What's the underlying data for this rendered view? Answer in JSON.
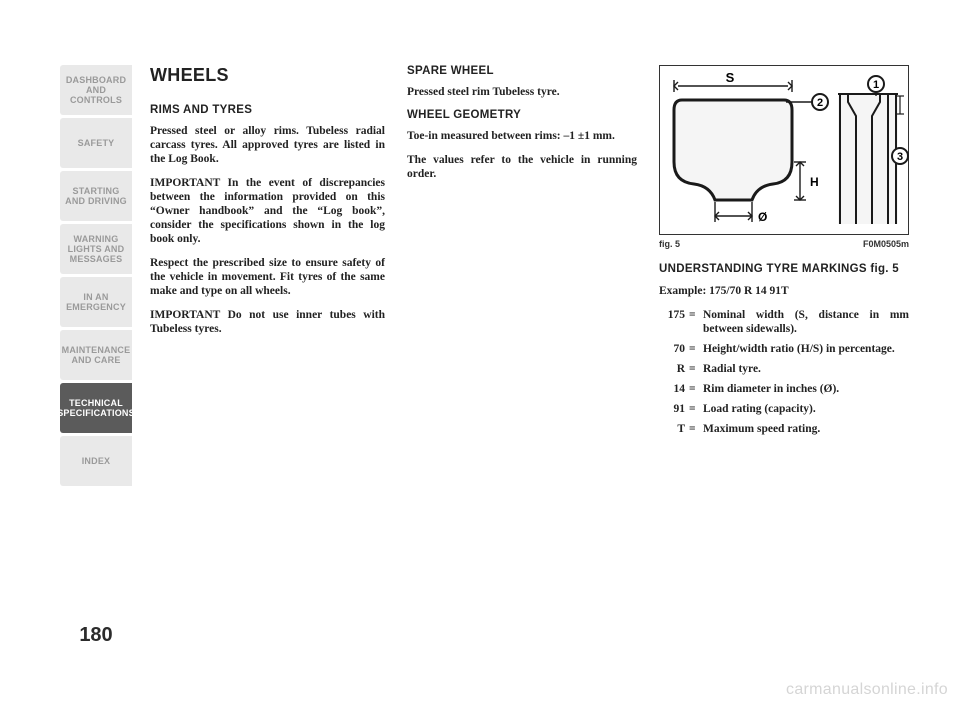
{
  "page_number": "180",
  "watermark": "carmanualsonline.info",
  "sidebar": {
    "tabs": [
      {
        "label": "DASHBOARD\nAND CONTROLS",
        "style": "light"
      },
      {
        "label": "SAFETY",
        "style": "light"
      },
      {
        "label": "STARTING\nAND DRIVING",
        "style": "light"
      },
      {
        "label": "WARNING\nLIGHTS AND\nMESSAGES",
        "style": "light"
      },
      {
        "label": "IN AN\nEMERGENCY",
        "style": "light"
      },
      {
        "label": "MAINTENANCE\nAND CARE",
        "style": "light"
      },
      {
        "label": "TECHNICAL\nSPECIFICATIONS",
        "style": "dark"
      },
      {
        "label": "INDEX",
        "style": "light"
      }
    ]
  },
  "col1": {
    "heading": "WHEELS",
    "sub1": "RIMS AND TYRES",
    "p1": "Pressed steel or alloy rims. Tubeless radial carcass tyres. All approved tyres are listed in the Log Book.",
    "p2": "IMPORTANT In the event of discrepancies between the information provided on this “Owner handbook” and the “Log book”, consider the specifications shown in the log book only.",
    "p3": "Respect the prescribed size to ensure safety of the vehicle in movement. Fit tyres of the same make and type on all wheels.",
    "p4": "IMPORTANT Do not use inner tubes with Tubeless tyres."
  },
  "col2": {
    "sub1": "SPARE WHEEL",
    "p1": "Pressed steel rim Tubeless tyre.",
    "sub2": "WHEEL GEOMETRY",
    "p2": "Toe-in measured between rims: –1 ±1 mm.",
    "p3": "The values refer to the vehicle in running order."
  },
  "col3": {
    "figure": {
      "caption_left": "fig. 5",
      "caption_right": "F0M0505m",
      "labels": {
        "S": "S",
        "H": "H",
        "phi": "Ø",
        "n1": "1",
        "n2": "2",
        "n3": "3"
      },
      "colors": {
        "stroke": "#1a1a1a",
        "fill_light": "#f5f5f5",
        "fill_dark": "#d9d9d9",
        "bg": "#ffffff"
      }
    },
    "sub1": "UNDERSTANDING TYRE MARKINGS fig. 5",
    "example_label": "Example: 175/70 R 14 91T",
    "defs": [
      {
        "term": "175",
        "def": "Nominal width (S, distance in mm between sidewalls)."
      },
      {
        "term": "70",
        "def": "Height/width ratio (H/S) in percentage."
      },
      {
        "term": "R",
        "def": "Radial tyre."
      },
      {
        "term": "14",
        "def": "Rim diameter in inches (Ø)."
      },
      {
        "term": "91",
        "def": "Load rating (capacity)."
      },
      {
        "term": "T",
        "def": "Maximum speed rating."
      }
    ]
  }
}
